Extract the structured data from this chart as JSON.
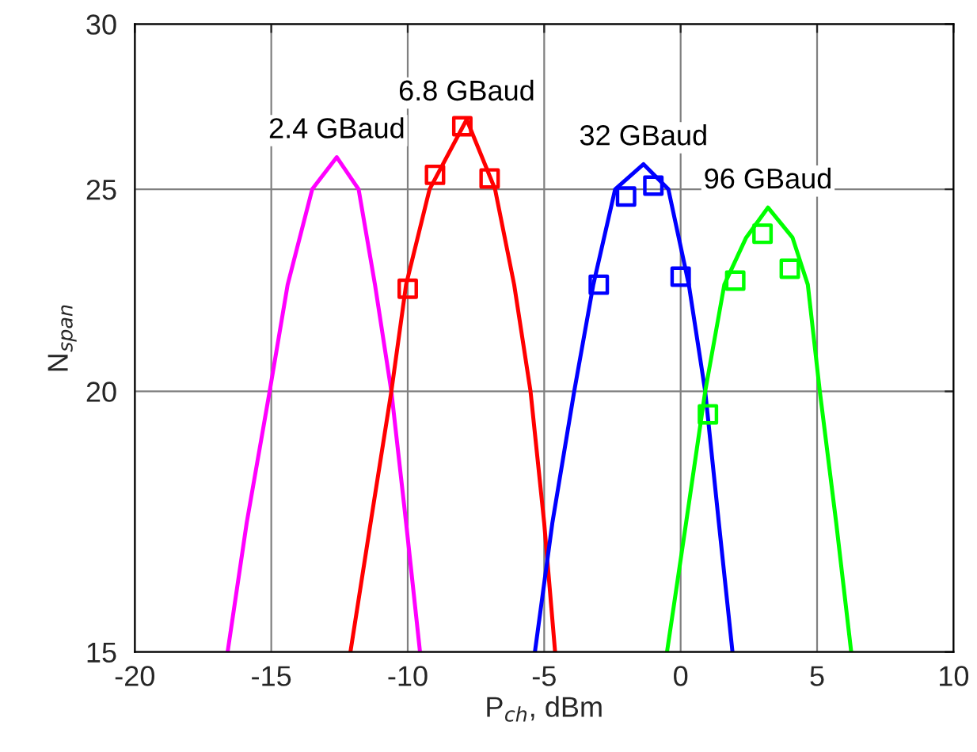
{
  "chart_data": {
    "type": "line",
    "xlabel": "P$_{ch}$, dBm",
    "ylabel": "N$_{span}$",
    "log": "y",
    "grid": true,
    "xlim": [
      -20,
      10
    ],
    "xticks": [
      -20,
      -15,
      -10,
      -5,
      0,
      5,
      10
    ],
    "ylim": [
      15,
      30
    ],
    "yticks": [
      15,
      20,
      25,
      30
    ],
    "series": [
      {
        "name": "2.4 GBaud",
        "color": "#ff00ff",
        "marker": "none",
        "x": [
          -16.6,
          -15.9,
          -15.06,
          -14.4,
          -13.5,
          -12.6,
          -11.8,
          -11.2,
          -10.6,
          -10.06,
          -9.55
        ],
        "values": [
          15,
          17.3,
          20,
          22.5,
          25,
          25.9,
          25,
          22.5,
          20,
          17.3,
          15
        ]
      },
      {
        "name": "6.8 GBaud",
        "color": "#ff0000",
        "marker": "none",
        "x": [
          -12.1,
          -11.36,
          -10.6,
          -10.06,
          -9.2,
          -7.84,
          -6.8,
          -6.1,
          -5.5,
          -5.0,
          -4.6
        ],
        "values": [
          15,
          17.3,
          20,
          22.5,
          25,
          27.0,
          25,
          22.5,
          20,
          17.3,
          15
        ]
      },
      {
        "type": "scatter",
        "color": "#ff0000",
        "marker": "square",
        "x": [
          -10,
          -9,
          -8,
          -7
        ],
        "values": [
          22.4,
          25.4,
          26.8,
          25.3
        ]
      },
      {
        "name": "32 GBaud",
        "color": "#0000ff",
        "marker": "none",
        "x": [
          -5.34,
          -4.7,
          -3.9,
          -3.2,
          -2.4,
          -1.36,
          -0.45,
          0.3,
          0.9,
          1.4,
          1.9
        ],
        "values": [
          15,
          17.3,
          20,
          22.5,
          25,
          25.7,
          25,
          22.5,
          20,
          17.3,
          15
        ]
      },
      {
        "type": "scatter",
        "color": "#0000ff",
        "marker": "square",
        "x": [
          -3,
          -2,
          -1,
          0
        ],
        "values": [
          22.5,
          24.8,
          25.1,
          22.7
        ]
      },
      {
        "name": "96 GBaud",
        "color": "#00ff00",
        "marker": "none",
        "x": [
          -0.5,
          0.2,
          0.9,
          1.6,
          2.4,
          3.2,
          4.1,
          4.66,
          5.1,
          5.7,
          6.25
        ],
        "values": [
          15,
          17.3,
          20,
          22.5,
          23.7,
          24.5,
          23.7,
          22.5,
          20,
          17.3,
          15
        ]
      },
      {
        "type": "scatter",
        "color": "#00ff00",
        "marker": "square",
        "x": [
          1,
          2,
          3,
          4
        ],
        "values": [
          19.5,
          22.6,
          23.8,
          22.9
        ]
      }
    ]
  }
}
